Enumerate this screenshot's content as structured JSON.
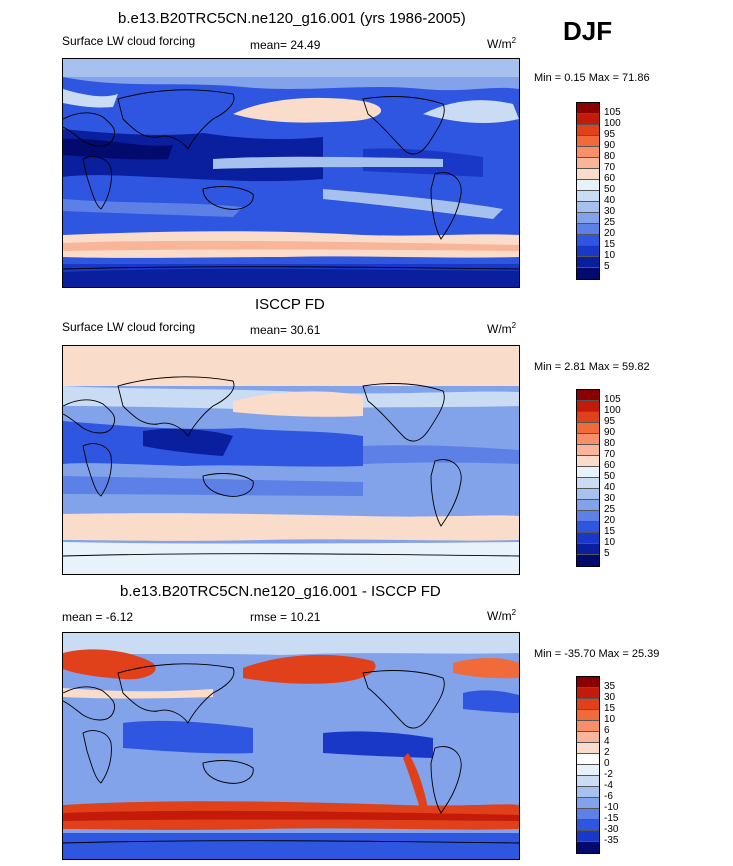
{
  "season": "DJF",
  "panels": [
    {
      "title": "b.e13.B20TRC5CN.ne120_g16.001 (yrs 1986-2005)",
      "left": "Surface LW cloud forcing",
      "mean": "mean=  24.49",
      "units_base": "W/m",
      "units_exp": "2",
      "minmax": "Min =   0.15 Max =  71.86"
    },
    {
      "title": "ISCCP FD",
      "left": "Surface LW cloud forcing",
      "mean": "mean=  30.61",
      "units_base": "W/m",
      "units_exp": "2",
      "minmax": "Min =   2.81 Max =  59.82"
    },
    {
      "title": "b.e13.B20TRC5CN.ne120_g16.001 - ISCCP FD",
      "left": "mean =  -6.12",
      "mean": "rmse =  10.21",
      "units_base": "W/m",
      "units_exp": "2",
      "minmax": "Min = -35.70 Max =  25.39"
    }
  ],
  "legend_abs": {
    "labels": [
      "105",
      "100",
      "95",
      "90",
      "80",
      "70",
      "60",
      "50",
      "40",
      "30",
      "25",
      "20",
      "15",
      "10",
      "5"
    ],
    "colors": [
      "#8b0000",
      "#c41a0a",
      "#e0401a",
      "#f06a3a",
      "#f79068",
      "#f8b59a",
      "#f9dcc9",
      "#e8f2fb",
      "#c9dcf4",
      "#a7c1ee",
      "#82a2ea",
      "#5c80e6",
      "#2f56e0",
      "#1a38c8",
      "#0a1f9e",
      "#020a6e"
    ]
  },
  "legend_diff": {
    "labels": [
      "35",
      "30",
      "15",
      "10",
      "6",
      "4",
      "2",
      "0",
      "-2",
      "-4",
      "-6",
      "-10",
      "-15",
      "-30",
      "-35"
    ],
    "colors": [
      "#8b0000",
      "#c41a0a",
      "#e0401a",
      "#f06a3a",
      "#f79068",
      "#f8b59a",
      "#f9dcc9",
      "#ffffff",
      "#e8f2fb",
      "#c9dcf4",
      "#a7c1ee",
      "#82a2ea",
      "#5c80e6",
      "#2f56e0",
      "#1a38c8",
      "#020a6e"
    ]
  }
}
